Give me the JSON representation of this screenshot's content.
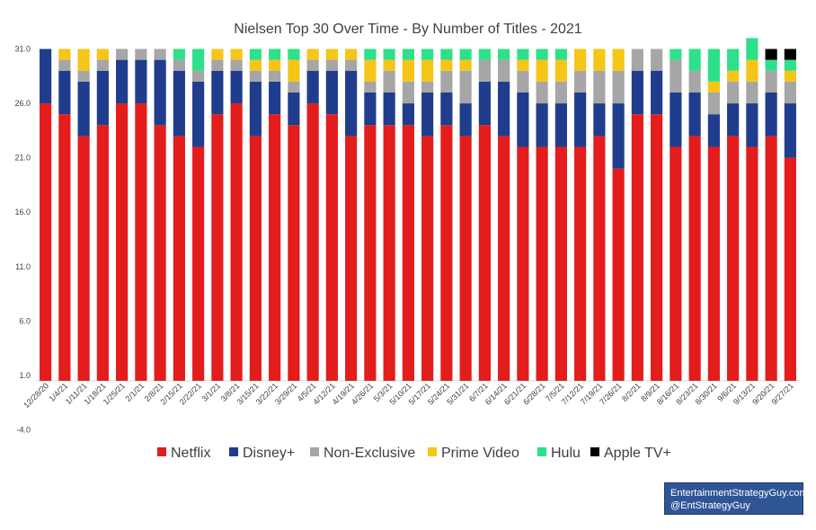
{
  "chart_data": {
    "type": "bar",
    "stacked": true,
    "title": "Nielsen Top 30 Over Time - By Number of Titles - 2021",
    "xlabel": "",
    "ylabel": "",
    "ylim": [
      -4.0,
      31.0
    ],
    "yticks": [
      "31.0",
      "26.0",
      "21.0",
      "16.0",
      "11.0",
      "6.0",
      "1.0",
      "-4.0"
    ],
    "grid": false,
    "legend_position": "bottom",
    "categories": [
      "12/28/20",
      "1/4/21",
      "1/11/21",
      "1/18/21",
      "1/25/21",
      "2/1/21",
      "2/8/21",
      "2/15/21",
      "2/22/21",
      "3/1/21",
      "3/8/21",
      "3/15/21",
      "3/22/21",
      "3/29/21",
      "4/5/21",
      "4/12/21",
      "4/19/21",
      "4/26/21",
      "5/3/21",
      "5/10/21",
      "5/17/21",
      "5/24/21",
      "5/31/21",
      "6/7/21",
      "6/14/21",
      "6/21/21",
      "6/28/21",
      "7/5/21",
      "7/12/21",
      "7/19/21",
      "7/26/21",
      "8/2/21",
      "8/9/21",
      "8/16/21",
      "8/23/21",
      "8/30/21",
      "9/6/21",
      "9/13/21",
      "9/20/21",
      "9/27/21"
    ],
    "series": [
      {
        "name": "Netflix",
        "color": "#e31c1c",
        "values": [
          25,
          24,
          22,
          23,
          25,
          25,
          23,
          22,
          21,
          24,
          25,
          22,
          24,
          23,
          25,
          24,
          22,
          23,
          23,
          23,
          22,
          23,
          22,
          23,
          22,
          21,
          21,
          21,
          21,
          22,
          19,
          24,
          24,
          21,
          22,
          21,
          22,
          21,
          22,
          20
        ]
      },
      {
        "name": "Disney+",
        "color": "#1f3d8c",
        "values": [
          5,
          4,
          5,
          5,
          4,
          4,
          6,
          6,
          6,
          4,
          3,
          5,
          3,
          3,
          3,
          4,
          6,
          3,
          3,
          2,
          4,
          3,
          3,
          4,
          5,
          5,
          4,
          4,
          5,
          3,
          6,
          4,
          4,
          5,
          4,
          3,
          3,
          4,
          4,
          5
        ]
      },
      {
        "name": "Non-Exclusive",
        "color": "#a6a6a6",
        "values": [
          0,
          1,
          1,
          1,
          1,
          1,
          1,
          1,
          1,
          1,
          1,
          1,
          1,
          1,
          1,
          1,
          1,
          1,
          2,
          2,
          1,
          2,
          3,
          2,
          2,
          2,
          2,
          2,
          2,
          3,
          3,
          2,
          2,
          3,
          2,
          2,
          2,
          2,
          2,
          2
        ]
      },
      {
        "name": "Prime Video",
        "color": "#f5c518",
        "values": [
          0,
          1,
          2,
          1,
          0,
          0,
          0,
          0,
          0,
          1,
          1,
          1,
          1,
          2,
          1,
          1,
          1,
          2,
          1,
          2,
          2,
          1,
          1,
          0,
          0,
          1,
          2,
          2,
          2,
          2,
          2,
          0,
          0,
          0,
          0,
          1,
          1,
          2,
          0,
          1
        ]
      },
      {
        "name": "Hulu",
        "color": "#2ee08a",
        "values": [
          0,
          0,
          0,
          0,
          0,
          0,
          0,
          1,
          2,
          0,
          0,
          1,
          1,
          1,
          0,
          0,
          0,
          1,
          1,
          1,
          1,
          1,
          1,
          1,
          1,
          1,
          1,
          1,
          0,
          0,
          0,
          0,
          0,
          1,
          2,
          3,
          2,
          2,
          1,
          1
        ]
      },
      {
        "name": "Apple TV+",
        "color": "#000000",
        "values": [
          0,
          0,
          0,
          0,
          0,
          0,
          0,
          0,
          0,
          0,
          0,
          0,
          0,
          0,
          0,
          0,
          0,
          0,
          0,
          0,
          0,
          0,
          0,
          0,
          0,
          0,
          0,
          0,
          0,
          0,
          0,
          0,
          0,
          0,
          0,
          0,
          0,
          0,
          1,
          1
        ]
      }
    ]
  },
  "credit": {
    "line1": "EntertainmentStrategyGuy.com",
    "line2": "@EntStrategyGuy"
  }
}
